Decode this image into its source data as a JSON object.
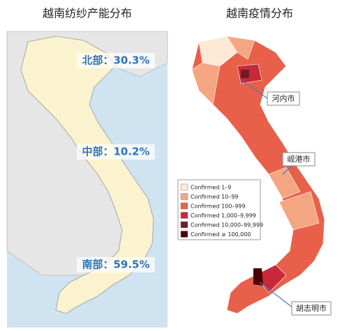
{
  "titles": {
    "left": "越南纺纱产能分布",
    "right": "越南疫情分布"
  },
  "left_map": {
    "regions": [
      {
        "label": "北部：30.3%"
      },
      {
        "label": "中部：10.2%"
      },
      {
        "label": "南部：59.5%"
      }
    ]
  },
  "right_map": {
    "legend": [
      {
        "label": "Confirmed 1–9",
        "color": "#fde9d6"
      },
      {
        "label": "Confirmed 10–99",
        "color": "#f4a582"
      },
      {
        "label": "Confirmed 100–999",
        "color": "#e8604a"
      },
      {
        "label": "Confirmed 1,000–9,999",
        "color": "#c9283a"
      },
      {
        "label": "Confirmed 10,000–99,999",
        "color": "#6d1d2a"
      },
      {
        "label": "Confirmed ≥ 100,000",
        "color": "#4a0000"
      }
    ],
    "cities": [
      {
        "label": "河内市"
      },
      {
        "label": "岘港市"
      },
      {
        "label": "胡志明市"
      }
    ]
  }
}
